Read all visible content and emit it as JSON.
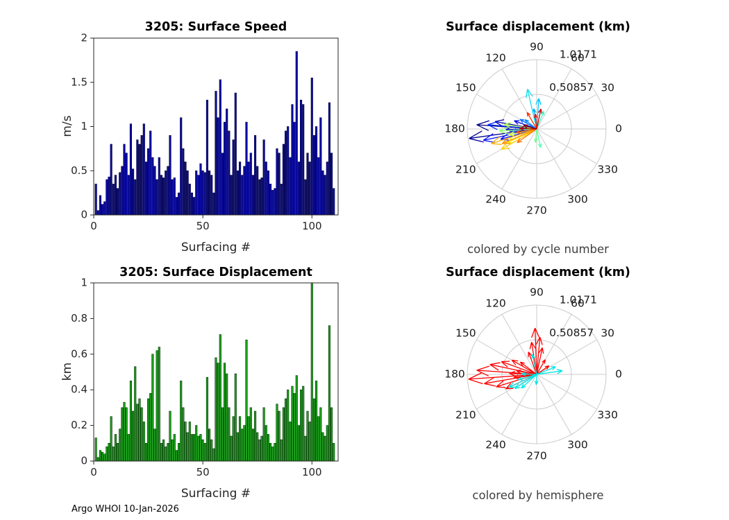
{
  "figure": {
    "footer": "Argo WHOI 10-Jan-2026"
  },
  "chart_data": [
    {
      "type": "bar",
      "title": "3205: Surface Speed",
      "xlabel": "Surfacing #",
      "ylabel": "m/s",
      "xlim": [
        0,
        112
      ],
      "ylim": [
        0,
        2
      ],
      "xticks": [
        0,
        50,
        100
      ],
      "yticks": [
        0,
        0.5,
        1,
        1.5,
        2
      ],
      "bar_color": "#0a0aa8",
      "bar_edge_color": "#000030",
      "values": [
        0.35,
        0.05,
        0.22,
        0.12,
        0.15,
        0.4,
        0.43,
        0.8,
        0.35,
        0.45,
        0.3,
        0.48,
        0.55,
        0.8,
        0.7,
        0.45,
        1.03,
        0.52,
        0.4,
        0.85,
        0.8,
        0.9,
        1.03,
        0.6,
        0.75,
        0.95,
        0.65,
        0.55,
        0.4,
        0.65,
        0.45,
        0.42,
        0.5,
        0.55,
        0.9,
        0.4,
        0.42,
        0.2,
        0.25,
        1.1,
        0.75,
        0.6,
        0.5,
        0.35,
        0.25,
        0.2,
        0.5,
        0.45,
        0.58,
        0.5,
        0.48,
        1.3,
        0.5,
        0.45,
        0.25,
        1.4,
        1.1,
        1.53,
        0.7,
        1.05,
        1.2,
        0.95,
        0.45,
        0.85,
        1.38,
        0.5,
        0.6,
        0.45,
        0.55,
        1.05,
        0.6,
        0.7,
        0.45,
        0.9,
        0.55,
        0.4,
        0.42,
        0.85,
        0.6,
        0.5,
        0.35,
        0.28,
        0.3,
        0.75,
        0.7,
        0.35,
        0.8,
        0.95,
        1.0,
        0.65,
        1.25,
        1.05,
        1.85,
        0.6,
        1.3,
        1.25,
        0.4,
        0.7,
        0.6,
        1.55,
        0.9,
        1.0,
        0.65,
        1.1,
        0.5,
        0.45,
        0.6,
        1.27,
        0.7,
        0.3
      ]
    },
    {
      "type": "polar_quiver",
      "title": "Surface displacement (km)",
      "caption": "colored by cycle number",
      "rmax": 1.0171,
      "rticks": [
        0.50857,
        1.0171
      ],
      "rtick_labels": [
        "0.50857",
        "1.0171"
      ],
      "angle_ticks": [
        0,
        30,
        60,
        90,
        120,
        150,
        180,
        210,
        240,
        270,
        300,
        330
      ],
      "arrows": [
        {
          "deg": 188,
          "r": 1.0,
          "color": "#000090"
        },
        {
          "deg": 176,
          "r": 0.88,
          "color": "#000080"
        },
        {
          "deg": 170,
          "r": 0.62,
          "color": "#0000a8"
        },
        {
          "deg": 181,
          "r": 0.45,
          "color": "#0000c8"
        },
        {
          "deg": 160,
          "r": 0.35,
          "color": "#0000e8"
        },
        {
          "deg": 196,
          "r": 0.55,
          "color": "#0008ff"
        },
        {
          "deg": 192,
          "r": 0.8,
          "color": "#0010ff"
        },
        {
          "deg": 175,
          "r": 0.72,
          "color": "#0028ff"
        },
        {
          "deg": 185,
          "r": 0.38,
          "color": "#0048ff"
        },
        {
          "deg": 150,
          "r": 0.28,
          "color": "#0068ff"
        },
        {
          "deg": 142,
          "r": 0.22,
          "color": "#0088ff"
        },
        {
          "deg": 98,
          "r": 0.3,
          "color": "#00a8ff"
        },
        {
          "deg": 86,
          "r": 0.45,
          "color": "#00c8ff"
        },
        {
          "deg": 103,
          "r": 0.6,
          "color": "#10e0ef"
        },
        {
          "deg": 68,
          "r": 0.28,
          "color": "#30ffd0"
        },
        {
          "deg": 282,
          "r": 0.28,
          "color": "#50ffb0"
        },
        {
          "deg": 265,
          "r": 0.2,
          "color": "#70ff90"
        },
        {
          "deg": 183,
          "r": 0.55,
          "color": "#90ff70"
        },
        {
          "deg": 172,
          "r": 0.48,
          "color": "#b0ff50"
        },
        {
          "deg": 192,
          "r": 0.42,
          "color": "#d0ff30"
        },
        {
          "deg": 205,
          "r": 0.48,
          "color": "#f0f000"
        },
        {
          "deg": 210,
          "r": 0.6,
          "color": "#ffd000"
        },
        {
          "deg": 198,
          "r": 0.7,
          "color": "#ffb000"
        },
        {
          "deg": 203,
          "r": 0.55,
          "color": "#ff9000"
        },
        {
          "deg": 215,
          "r": 0.35,
          "color": "#ff7000"
        },
        {
          "deg": 190,
          "r": 0.3,
          "color": "#ff5000"
        },
        {
          "deg": 120,
          "r": 0.28,
          "color": "#ff3000"
        },
        {
          "deg": 95,
          "r": 0.22,
          "color": "#f01000"
        },
        {
          "deg": 78,
          "r": 0.3,
          "color": "#d00000"
        },
        {
          "deg": 178,
          "r": 0.25,
          "color": "#b00000"
        },
        {
          "deg": 165,
          "r": 0.2,
          "color": "#900000"
        }
      ]
    },
    {
      "type": "bar",
      "title": "3205: Surface Displacement",
      "xlabel": "Surfacing #",
      "ylabel": "km",
      "xlim": [
        0,
        112
      ],
      "ylim": [
        0,
        1
      ],
      "xticks": [
        0,
        50,
        100
      ],
      "yticks": [
        0,
        0.2,
        0.4,
        0.6,
        0.8,
        1
      ],
      "bar_color": "#1ea41e",
      "bar_edge_color": "#003000",
      "values": [
        0.13,
        0.02,
        0.06,
        0.05,
        0.04,
        0.08,
        0.1,
        0.25,
        0.08,
        0.15,
        0.1,
        0.18,
        0.3,
        0.33,
        0.3,
        0.15,
        0.45,
        0.28,
        0.53,
        0.32,
        0.35,
        0.3,
        0.22,
        0.1,
        0.35,
        0.38,
        0.6,
        0.18,
        0.62,
        0.64,
        0.1,
        0.12,
        0.08,
        0.1,
        0.28,
        0.12,
        0.15,
        0.06,
        0.1,
        0.45,
        0.3,
        0.22,
        0.16,
        0.22,
        0.15,
        0.15,
        0.2,
        0.14,
        0.15,
        0.12,
        0.1,
        0.47,
        0.18,
        0.12,
        0.07,
        0.58,
        0.55,
        0.71,
        0.3,
        0.55,
        0.49,
        0.3,
        0.14,
        0.25,
        0.49,
        0.16,
        0.25,
        0.18,
        0.2,
        0.68,
        0.25,
        0.3,
        0.18,
        0.28,
        0.16,
        0.12,
        0.14,
        0.3,
        0.2,
        0.15,
        0.1,
        0.08,
        0.1,
        0.32,
        0.28,
        0.12,
        0.3,
        0.35,
        0.4,
        0.22,
        0.42,
        0.38,
        0.48,
        0.2,
        0.4,
        0.42,
        0.14,
        0.28,
        0.22,
        1.0,
        0.35,
        0.45,
        0.25,
        0.3,
        0.16,
        0.14,
        0.2,
        0.76,
        0.3,
        0.1
      ]
    },
    {
      "type": "polar_quiver",
      "title": "Surface displacement (km)",
      "caption": "colored by hemisphere",
      "rmax": 1.0171,
      "rticks": [
        0.50857,
        1.0171
      ],
      "rtick_labels": [
        "0.50857",
        "1.0171"
      ],
      "angle_ticks": [
        0,
        30,
        60,
        90,
        120,
        150,
        180,
        210,
        240,
        270,
        300,
        330
      ],
      "arrows": [
        {
          "deg": 184,
          "r": 1.0,
          "color": "#ff0000"
        },
        {
          "deg": 176,
          "r": 0.88,
          "color": "#ff0000"
        },
        {
          "deg": 190,
          "r": 0.78,
          "color": "#ff0000"
        },
        {
          "deg": 168,
          "r": 0.7,
          "color": "#ff0000"
        },
        {
          "deg": 197,
          "r": 0.62,
          "color": "#ff0000"
        },
        {
          "deg": 160,
          "r": 0.55,
          "color": "#ff0000"
        },
        {
          "deg": 205,
          "r": 0.5,
          "color": "#ff0000"
        },
        {
          "deg": 150,
          "r": 0.42,
          "color": "#ff0000"
        },
        {
          "deg": 178,
          "r": 0.4,
          "color": "#ff0000"
        },
        {
          "deg": 188,
          "r": 0.34,
          "color": "#ff0000"
        },
        {
          "deg": 170,
          "r": 0.3,
          "color": "#ff0000"
        },
        {
          "deg": 143,
          "r": 0.3,
          "color": "#ff0000"
        },
        {
          "deg": 92,
          "r": 0.68,
          "color": "#ff0000"
        },
        {
          "deg": 85,
          "r": 0.55,
          "color": "#ff0000"
        },
        {
          "deg": 99,
          "r": 0.48,
          "color": "#ff0000"
        },
        {
          "deg": 78,
          "r": 0.4,
          "color": "#ff0000"
        },
        {
          "deg": 110,
          "r": 0.35,
          "color": "#ff0000"
        },
        {
          "deg": 60,
          "r": 0.25,
          "color": "#ff0000"
        },
        {
          "deg": 35,
          "r": 0.22,
          "color": "#ff0000"
        },
        {
          "deg": 8,
          "r": 0.38,
          "color": "#00e5e5"
        },
        {
          "deg": 22,
          "r": 0.3,
          "color": "#00e5e5"
        },
        {
          "deg": 205,
          "r": 0.45,
          "color": "#00e5e5"
        },
        {
          "deg": 213,
          "r": 0.38,
          "color": "#00e5e5"
        },
        {
          "deg": 222,
          "r": 0.3,
          "color": "#00e5e5"
        },
        {
          "deg": 196,
          "r": 0.28,
          "color": "#00e5e5"
        },
        {
          "deg": 102,
          "r": 0.3,
          "color": "#00e5e5"
        },
        {
          "deg": 178,
          "r": 0.22,
          "color": "#00e5e5"
        },
        {
          "deg": 268,
          "r": 0.15,
          "color": "#00e5e5"
        }
      ]
    }
  ]
}
